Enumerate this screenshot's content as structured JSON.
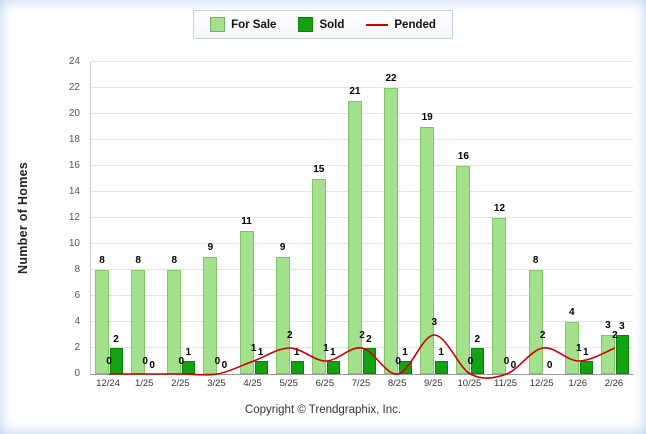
{
  "chart_data": {
    "type": "bar",
    "title": "",
    "categories": [
      "12/24",
      "1/25",
      "2/25",
      "3/25",
      "4/25",
      "5/25",
      "6/25",
      "7/25",
      "8/25",
      "9/25",
      "10/25",
      "11/25",
      "12/25",
      "1/26",
      "2/26"
    ],
    "series": [
      {
        "name": "For Sale",
        "type": "bar",
        "color": "#a3e18c",
        "values": [
          8,
          8,
          8,
          9,
          11,
          9,
          15,
          21,
          22,
          19,
          16,
          12,
          8,
          4,
          3
        ]
      },
      {
        "name": "Sold",
        "type": "bar",
        "color": "#12a212",
        "values": [
          2,
          0,
          1,
          0,
          1,
          1,
          1,
          2,
          1,
          1,
          2,
          0,
          0,
          1,
          3
        ]
      },
      {
        "name": "Pended",
        "type": "line",
        "color": "#cc0000",
        "values": [
          0,
          0,
          0,
          0,
          1,
          2,
          1,
          2,
          0,
          3,
          0,
          0,
          2,
          1,
          2
        ]
      }
    ],
    "xlabel": "",
    "ylabel": "Number of Homes",
    "ylim": [
      0,
      24
    ],
    "ytick_step": 2,
    "grid": true,
    "legend_position": "top"
  },
  "footer": {
    "copyright": "Copyright © Trendgraphix, Inc."
  }
}
